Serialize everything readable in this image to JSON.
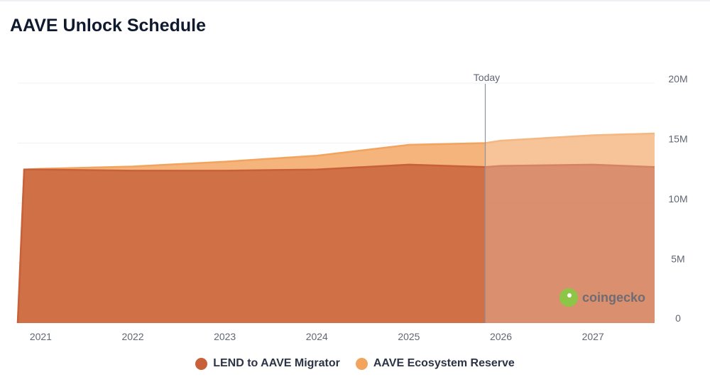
{
  "chart_data": {
    "type": "area",
    "stacked": true,
    "title": "AAVE Unlock Schedule",
    "x": [
      2020.75,
      2020.82,
      2021.0,
      2022.0,
      2023.0,
      2024.0,
      2025.0,
      2025.83,
      2026.0,
      2027.0,
      2027.67
    ],
    "series": [
      {
        "name": "LEND to AAVE Migrator",
        "color": "#c8603a",
        "values": [
          0,
          12.8,
          12.8,
          12.7,
          12.7,
          12.8,
          13.2,
          13.0,
          13.1,
          13.2,
          13.0
        ]
      },
      {
        "name": "AAVE Ecosystem Reserve",
        "color": "#f2a35e",
        "values": [
          0,
          0,
          0.05,
          0.35,
          0.75,
          1.15,
          1.65,
          2.0,
          2.1,
          2.45,
          2.8
        ]
      }
    ],
    "x_ticks": [
      "2021",
      "2022",
      "2023",
      "2024",
      "2025",
      "2026",
      "2027"
    ],
    "y_ticks": [
      "0",
      "5M",
      "10M",
      "15M",
      "20M"
    ],
    "y_tick_values": [
      0,
      5,
      10,
      15,
      20
    ],
    "ylim": [
      0,
      20
    ],
    "xlim": [
      2020.75,
      2027.67
    ],
    "today": {
      "label": "Today",
      "x": 2025.83
    },
    "xlabel": "",
    "ylabel": ""
  },
  "watermark": {
    "text": "coingecko"
  }
}
